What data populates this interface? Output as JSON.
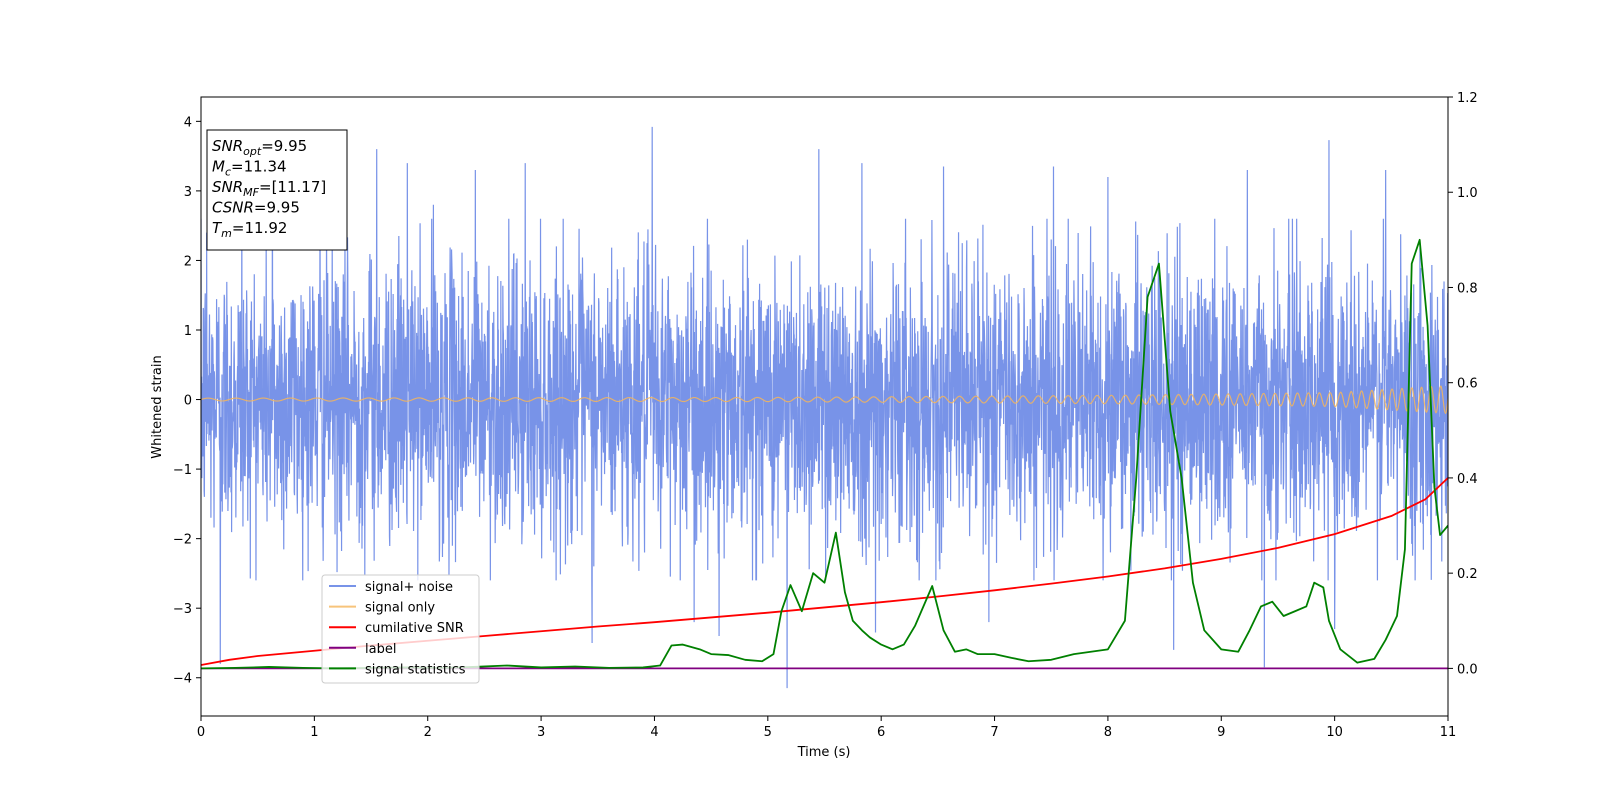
{
  "chart_data": {
    "type": "line",
    "xlabel": "Time (s)",
    "ylabel": "Whitened strain",
    "xlim": [
      0,
      11
    ],
    "ylim_left": [
      -4.55,
      4.35
    ],
    "ylim_right": [
      -0.1,
      1.2
    ],
    "x_ticks": [
      0,
      1,
      2,
      3,
      4,
      5,
      6,
      7,
      8,
      9,
      10,
      11
    ],
    "y_left_ticks": [
      -4,
      -3,
      -2,
      -1,
      0,
      1,
      2,
      3,
      4
    ],
    "y_right_ticks": [
      0.0,
      0.2,
      0.4,
      0.6,
      0.8,
      1.0,
      1.2
    ],
    "grid": false,
    "legend_position": "lower-left",
    "annotation_box": {
      "position": "upper-left",
      "lines": [
        {
          "main": "SNR",
          "sub": "opt",
          "rest": "=9.95"
        },
        {
          "main": "M",
          "sub": "c",
          "rest": "=11.34"
        },
        {
          "main": "SNR",
          "sub": "MF",
          "rest": "=[11.17]"
        },
        {
          "main": "CSNR",
          "sub": "",
          "rest": "=9.95"
        },
        {
          "main": "T",
          "sub": "m",
          "rest": "=11.92"
        }
      ]
    },
    "series": [
      {
        "name": "signal+ noise",
        "axis": "left",
        "color": "#7893e8",
        "kind": "noise",
        "noise_sigma": 1.0,
        "envelope": {
          "min_peak": -4.15,
          "max_peak": 3.92
        },
        "peaks": [
          [
            0.05,
            2.4
          ],
          [
            0.17,
            -3.8
          ],
          [
            0.36,
            3.0
          ],
          [
            0.63,
            3.2
          ],
          [
            1.05,
            3.05
          ],
          [
            1.55,
            3.6
          ],
          [
            1.82,
            3.4
          ],
          [
            2.05,
            2.8
          ],
          [
            2.42,
            3.3
          ],
          [
            2.86,
            3.4
          ],
          [
            3.45,
            -3.5
          ],
          [
            3.98,
            3.92
          ],
          [
            4.35,
            -3.2
          ],
          [
            4.57,
            -3.4
          ],
          [
            5.17,
            -4.15
          ],
          [
            5.45,
            3.6
          ],
          [
            5.83,
            3.4
          ],
          [
            5.95,
            -3.35
          ],
          [
            6.55,
            3.35
          ],
          [
            6.95,
            -3.2
          ],
          [
            7.52,
            3.35
          ],
          [
            8.0,
            3.2
          ],
          [
            8.58,
            -3.6
          ],
          [
            9.23,
            3.3
          ],
          [
            9.38,
            -3.85
          ],
          [
            9.95,
            3.73
          ],
          [
            10.0,
            -3.3
          ],
          [
            10.45,
            3.3
          ]
        ]
      },
      {
        "name": "signal only",
        "axis": "left",
        "color": "#f5b55a",
        "kind": "chirp",
        "amplitude_points": [
          [
            0,
            0.02
          ],
          [
            5,
            0.03
          ],
          [
            8,
            0.06
          ],
          [
            10,
            0.1
          ],
          [
            11,
            0.2
          ]
        ],
        "frequency_points": [
          [
            0,
            4.0
          ],
          [
            5,
            5.5
          ],
          [
            8,
            8.0
          ],
          [
            11,
            12.0
          ]
        ]
      },
      {
        "name": "cumilative SNR",
        "axis": "right",
        "color": "#ff0000",
        "kind": "line",
        "x": [
          0,
          0.25,
          0.5,
          1,
          1.5,
          2,
          2.5,
          3,
          3.5,
          4,
          4.5,
          5,
          5.5,
          6,
          6.5,
          7,
          7.5,
          8,
          8.5,
          9,
          9.5,
          10,
          10.5,
          10.8,
          11
        ],
        "y": [
          0.007,
          0.018,
          0.026,
          0.037,
          0.048,
          0.058,
          0.068,
          0.078,
          0.088,
          0.097,
          0.107,
          0.117,
          0.128,
          0.139,
          0.151,
          0.164,
          0.178,
          0.193,
          0.21,
          0.23,
          0.253,
          0.282,
          0.32,
          0.355,
          0.4
        ]
      },
      {
        "name": "label",
        "axis": "right",
        "color": "#800080",
        "kind": "line",
        "x": [
          0,
          11
        ],
        "y": [
          0.0,
          0.0
        ]
      },
      {
        "name": "signal statistics",
        "axis": "right",
        "color": "#008000",
        "kind": "line",
        "x": [
          0,
          0.3,
          0.6,
          0.9,
          1.2,
          1.5,
          1.8,
          2.1,
          2.4,
          2.7,
          3.0,
          3.3,
          3.6,
          3.9,
          4.05,
          4.15,
          4.25,
          4.4,
          4.5,
          4.65,
          4.8,
          4.95,
          5.05,
          5.12,
          5.2,
          5.3,
          5.4,
          5.5,
          5.6,
          5.68,
          5.75,
          5.83,
          5.9,
          6.0,
          6.1,
          6.2,
          6.3,
          6.45,
          6.55,
          6.65,
          6.75,
          6.85,
          7.0,
          7.15,
          7.3,
          7.5,
          7.7,
          7.85,
          8.0,
          8.15,
          8.25,
          8.35,
          8.45,
          8.55,
          8.65,
          8.75,
          8.85,
          9.0,
          9.15,
          9.25,
          9.35,
          9.45,
          9.55,
          9.65,
          9.75,
          9.82,
          9.9,
          9.95,
          10.05,
          10.2,
          10.35,
          10.45,
          10.55,
          10.62,
          10.68,
          10.75,
          10.82,
          10.88,
          10.93,
          11.0
        ],
        "y": [
          0.0,
          0.001,
          0.003,
          0.001,
          0.0,
          0.001,
          0.002,
          0.001,
          0.003,
          0.006,
          0.002,
          0.004,
          0.001,
          0.002,
          0.006,
          0.048,
          0.05,
          0.04,
          0.03,
          0.028,
          0.018,
          0.015,
          0.03,
          0.12,
          0.175,
          0.12,
          0.2,
          0.18,
          0.285,
          0.16,
          0.1,
          0.08,
          0.065,
          0.05,
          0.04,
          0.05,
          0.09,
          0.173,
          0.08,
          0.035,
          0.04,
          0.03,
          0.03,
          0.022,
          0.015,
          0.018,
          0.03,
          0.035,
          0.04,
          0.1,
          0.4,
          0.78,
          0.85,
          0.54,
          0.4,
          0.18,
          0.08,
          0.04,
          0.035,
          0.08,
          0.13,
          0.14,
          0.11,
          0.12,
          0.13,
          0.18,
          0.17,
          0.1,
          0.04,
          0.012,
          0.02,
          0.06,
          0.11,
          0.25,
          0.85,
          0.9,
          0.72,
          0.38,
          0.28,
          0.3
        ]
      }
    ]
  }
}
